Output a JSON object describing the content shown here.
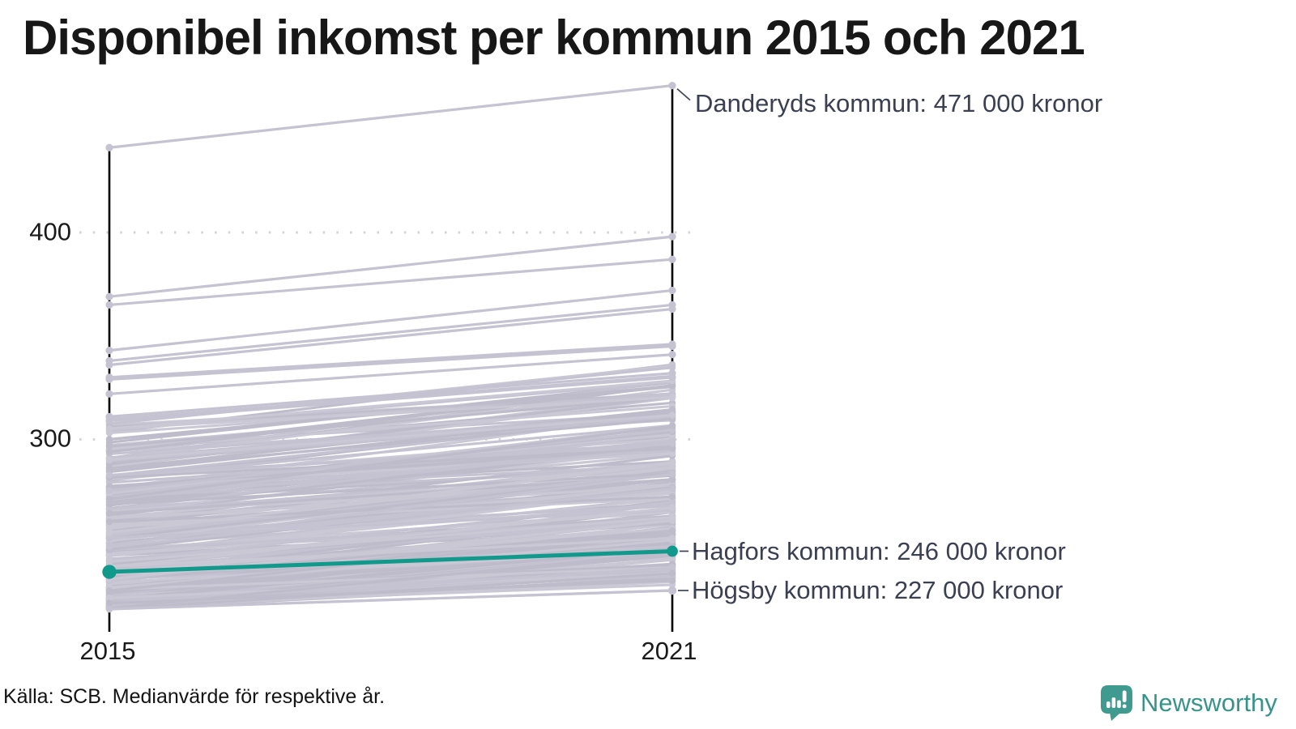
{
  "title": "Disponibel inkomst per kommun 2015 och 2021",
  "source": "Källa: SCB. Medianvärde för respektive år.",
  "logo": {
    "name": "Newsworthy",
    "color": "#38948a"
  },
  "colors": {
    "highlight": "#11998b",
    "background_line": "#c5c3d1",
    "background_line_light": "#cac8d5",
    "background_line_dark": "#bebcca",
    "axis": "#000000",
    "grid": "#d4d3da",
    "annotation_text": "#3b3f52",
    "leader_line": "#3f4354",
    "title_text": "#171717"
  },
  "chart_data": {
    "type": "slopegraph",
    "title": "Disponibel inkomst per kommun 2015 och 2021",
    "x_categories": [
      "2015",
      "2021"
    ],
    "unit": "tusen kronor",
    "yticks": [
      400,
      300
    ],
    "ytick_labels": [
      "400",
      "300"
    ],
    "ylim": [
      213,
      478
    ],
    "grid": "dotted horizontal lines at y ticks",
    "legend": "none",
    "annotations": [
      {
        "id": "danderyd",
        "label": "Danderyds kommun: 471 000 kronor",
        "values": [
          441,
          471
        ],
        "highlight": false
      },
      {
        "id": "hagfors",
        "label": "Hagfors kommun: 246 000 kronor",
        "values": [
          236,
          246
        ],
        "highlight": true
      },
      {
        "id": "hogsby",
        "label": "Högsby kommun: 227 000 kronor",
        "values": [
          218,
          227
        ],
        "highlight": false
      }
    ],
    "outlier_lines": [
      [
        369,
        398
      ],
      [
        365,
        387
      ],
      [
        343,
        372
      ],
      [
        338,
        365
      ],
      [
        336,
        363
      ],
      [
        330,
        346
      ],
      [
        329,
        345
      ],
      [
        322,
        341
      ],
      [
        311,
        332
      ],
      [
        309,
        330
      ]
    ],
    "background_mass": {
      "description": "remaining Swedish municipalities, values estimated from pixel density",
      "count": 278,
      "left_min": 218,
      "left_max": 310,
      "skew_exponent": 1.9,
      "gain_min": 9,
      "gain_max": 33,
      "gain_slope": 0.06,
      "right_cap": 338,
      "seed": 20150721
    }
  }
}
